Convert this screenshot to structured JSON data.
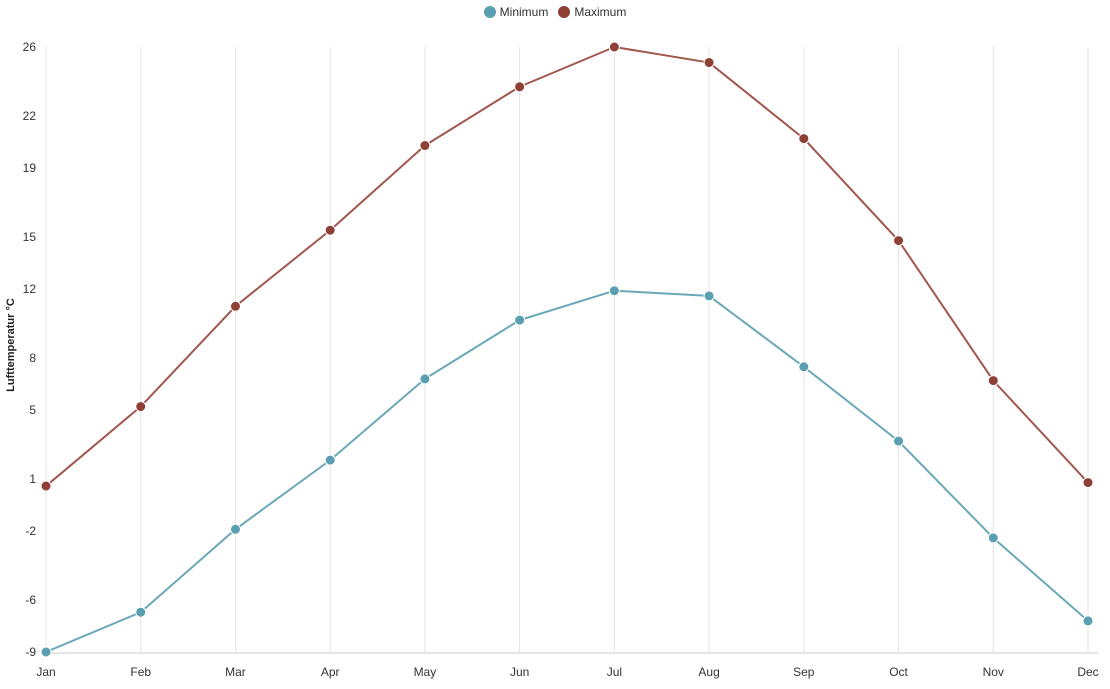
{
  "colors": {
    "minimum": "#6aa8b8",
    "minimum_marker": "#5a9fb1",
    "maximum": "#a1574d",
    "maximum_marker": "#8e3f36",
    "grid": "#e3e3e3"
  },
  "legend": {
    "items": [
      {
        "name": "Minimum",
        "icon": "circle-marker-icon"
      },
      {
        "name": "Maximum",
        "icon": "circle-marker-icon"
      }
    ],
    "placement": "top-center"
  },
  "chart_data": {
    "type": "line",
    "title": "",
    "xlabel": "",
    "ylabel": "Lufttemperatur °C",
    "categories": [
      "Jan",
      "Feb",
      "Mar",
      "Apr",
      "May",
      "Jun",
      "Jul",
      "Aug",
      "Sep",
      "Oct",
      "Nov",
      "Dec"
    ],
    "y_ticks": [
      -9,
      -6,
      -2,
      1,
      5,
      8,
      12,
      15,
      19,
      22,
      26
    ],
    "ylim": [
      -9,
      26
    ],
    "grid": "vertical",
    "series": [
      {
        "name": "Minimum",
        "values": [
          -9.0,
          -6.7,
          -1.9,
          2.1,
          6.8,
          10.2,
          11.9,
          11.6,
          7.5,
          3.2,
          -2.4,
          -7.2
        ]
      },
      {
        "name": "Maximum",
        "values": [
          0.6,
          5.2,
          11.0,
          15.4,
          20.3,
          23.7,
          26.0,
          25.1,
          20.7,
          14.8,
          6.7,
          0.8
        ]
      }
    ]
  }
}
